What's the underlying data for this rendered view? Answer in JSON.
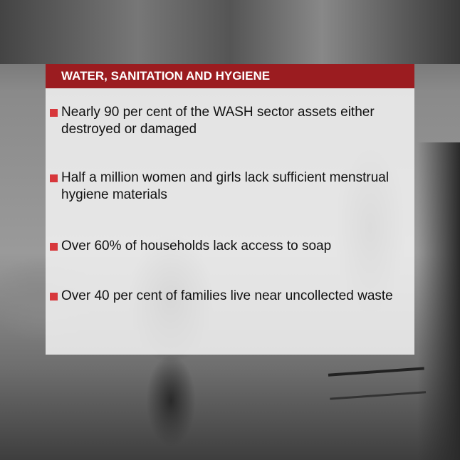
{
  "header": {
    "title": "WATER, SANITATION AND HYGIENE",
    "color": "#9b1c20"
  },
  "bullet_color": "#d7373b",
  "items": [
    {
      "text": "Nearly 90 per cent of the WASH sector assets either destroyed or damaged"
    },
    {
      "text": "Half a million women and girls lack sufficient menstrual hygiene materials"
    },
    {
      "text": "Over 60% of households lack access to soap"
    },
    {
      "text": "Over 40 per cent of families live near uncollected waste"
    }
  ]
}
